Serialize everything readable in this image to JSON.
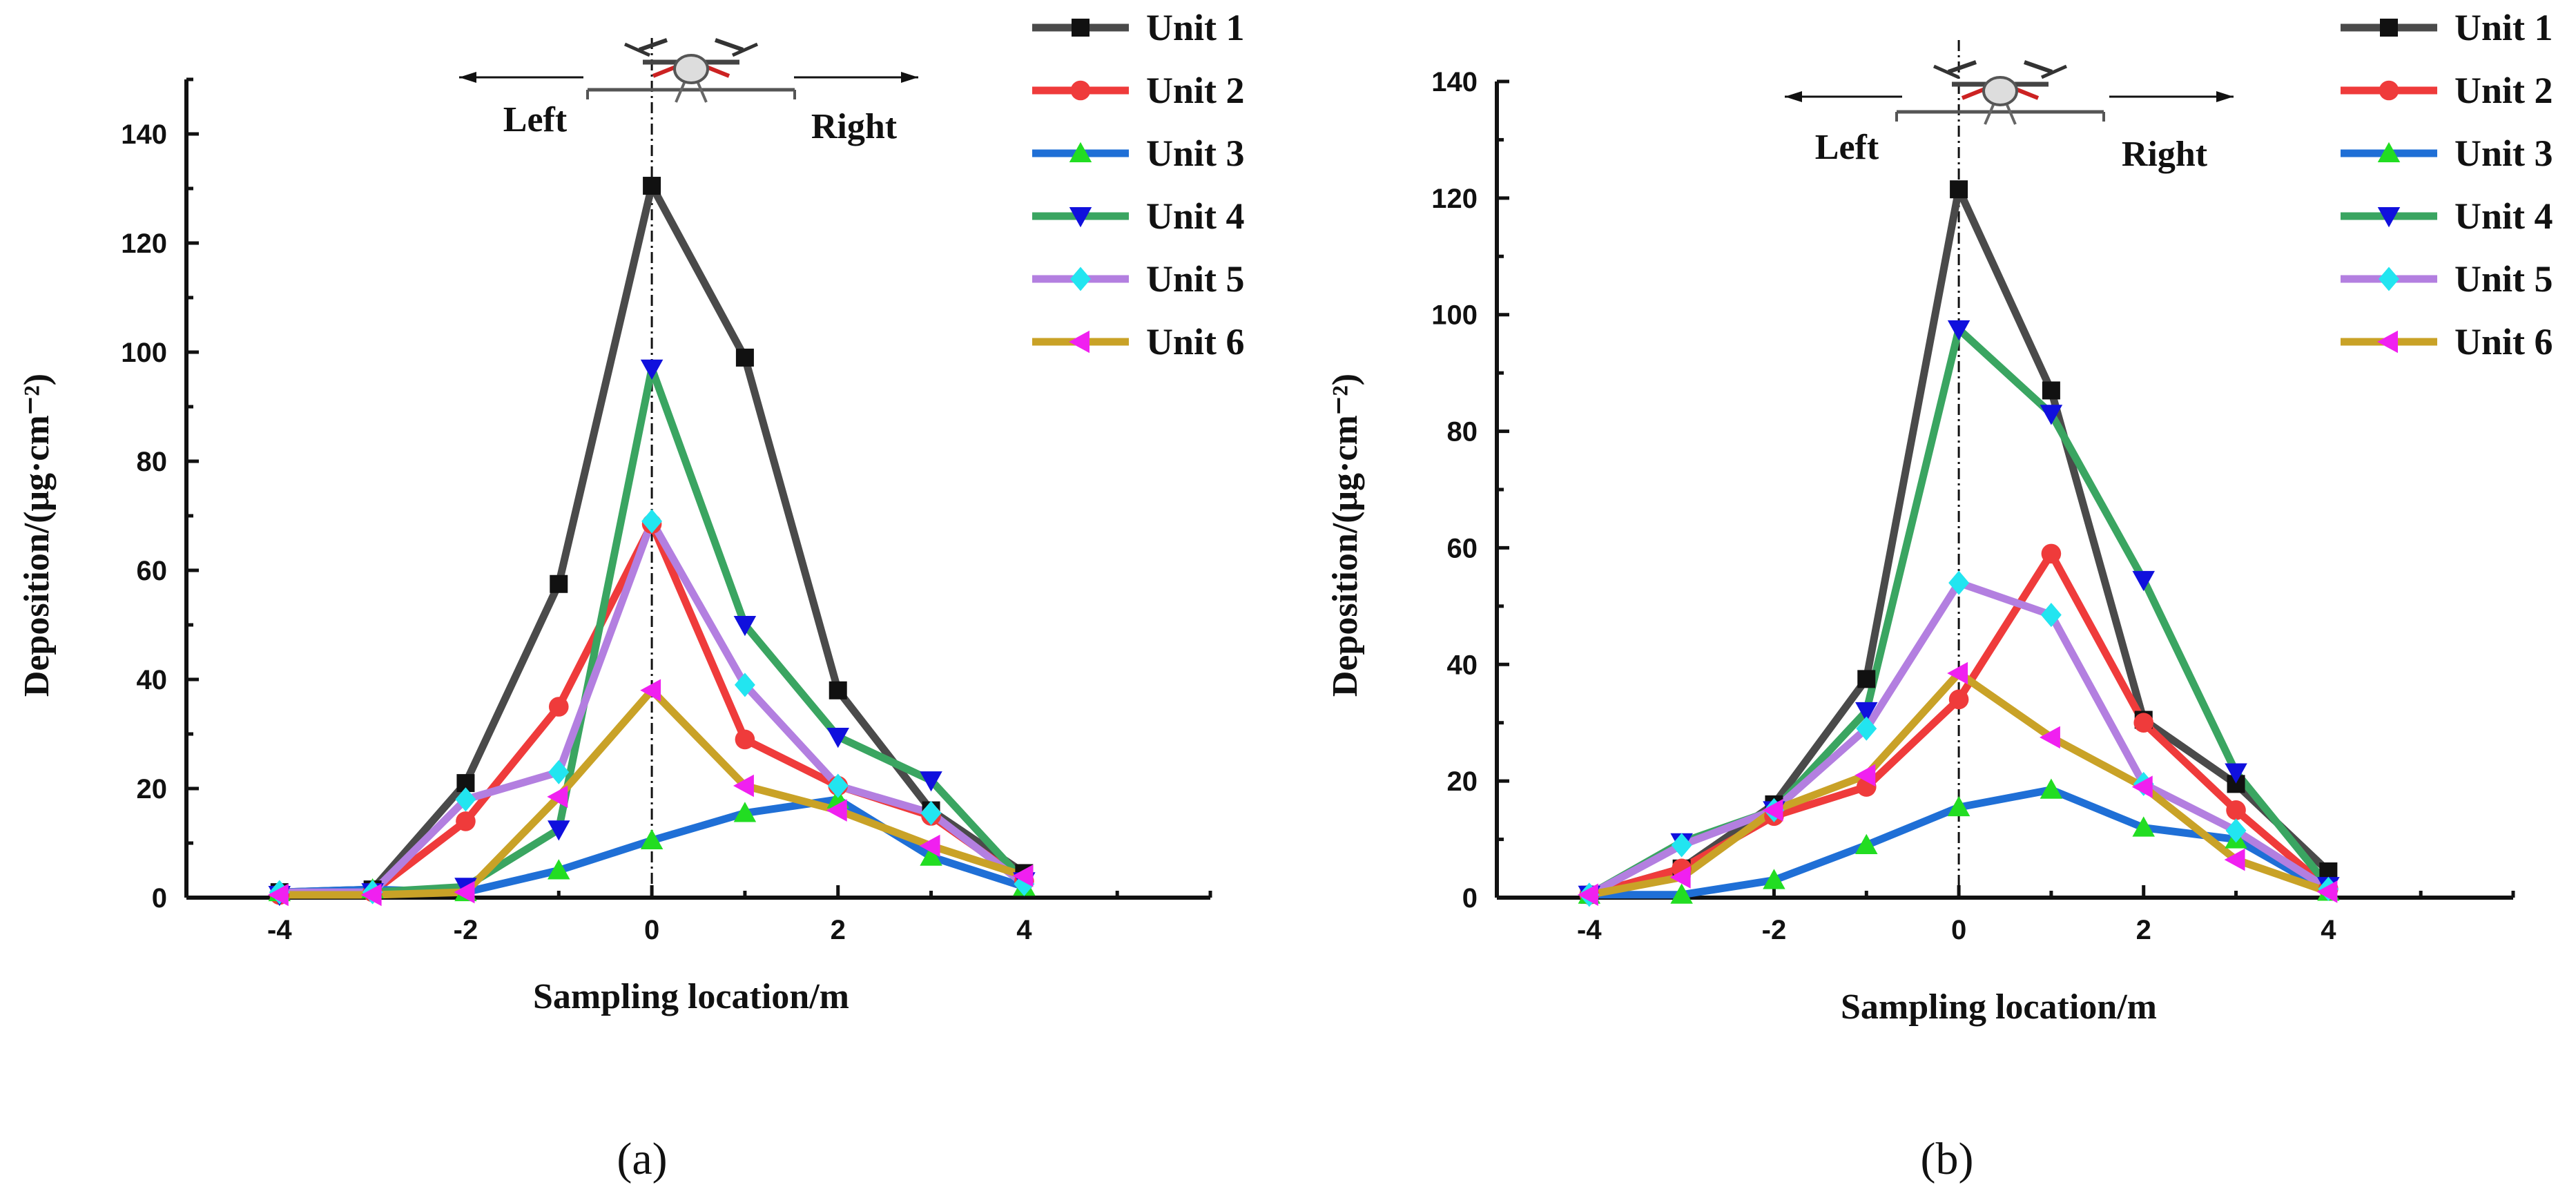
{
  "chart_data": [
    {
      "type": "line",
      "panel_label": "(a)",
      "xlabel": "Sampling location/m",
      "ylabel": "Deposition/(μg·cm⁻²)",
      "xlim": [
        -5,
        6
      ],
      "ylim": [
        0,
        150
      ],
      "xticks": [
        -4,
        -2,
        0,
        2,
        4
      ],
      "yticks": [
        0,
        20,
        40,
        60,
        80,
        100,
        120,
        140
      ],
      "annotations": {
        "left": "Left",
        "right": "Right"
      },
      "x": [
        -4,
        -3,
        -2,
        -1,
        0,
        1,
        2,
        3,
        4
      ],
      "series": [
        {
          "name": "Unit 1",
          "color": "#4a4a4a",
          "marker": "square",
          "values": [
            1,
            1.5,
            21,
            57.5,
            130.5,
            99,
            38,
            16,
            4.5
          ]
        },
        {
          "name": "Unit 2",
          "color": "#ef3b3b",
          "marker": "circle",
          "values": [
            0.5,
            1,
            14,
            35,
            68.5,
            29,
            20.5,
            15,
            3
          ]
        },
        {
          "name": "Unit 3",
          "color": "#1f6fd6",
          "marker": "triangle-up",
          "values": [
            1,
            1.5,
            1,
            5,
            10.5,
            15.5,
            18,
            7.5,
            2
          ]
        },
        {
          "name": "Unit 4",
          "color": "#3aa561",
          "marker": "triangle-down",
          "values": [
            0.5,
            1,
            2,
            12.5,
            97,
            50,
            29.5,
            21.5,
            3
          ]
        },
        {
          "name": "Unit 5",
          "color": "#b37fe0",
          "marker": "diamond",
          "values": [
            1,
            1,
            18,
            23,
            69,
            39,
            20.5,
            15.5,
            2.5
          ]
        },
        {
          "name": "Unit 6",
          "color": "#c9a227",
          "marker": "triangle-left",
          "values": [
            0.5,
            0.5,
            1,
            18.5,
            38,
            20.5,
            16,
            9.5,
            4
          ]
        }
      ]
    },
    {
      "type": "line",
      "panel_label": "(b)",
      "xlabel": "Sampling location/m",
      "ylabel": "Deposition/(μg·cm⁻²)",
      "xlim": [
        -5,
        6
      ],
      "ylim": [
        0,
        140
      ],
      "xticks": [
        -4,
        -2,
        0,
        2,
        4
      ],
      "yticks": [
        0,
        20,
        40,
        60,
        80,
        100,
        120,
        140
      ],
      "annotations": {
        "left": "Left",
        "right": "Right"
      },
      "x": [
        -4,
        -3,
        -2,
        -1,
        0,
        1,
        2,
        3,
        4
      ],
      "series": [
        {
          "name": "Unit 1",
          "color": "#4a4a4a",
          "marker": "square",
          "values": [
            0.5,
            5,
            16,
            37.5,
            121.5,
            87,
            30.5,
            19.5,
            4.5
          ]
        },
        {
          "name": "Unit 2",
          "color": "#ef3b3b",
          "marker": "circle",
          "values": [
            0.5,
            5,
            14,
            19,
            34,
            59,
            30,
            15,
            1.5
          ]
        },
        {
          "name": "Unit 3",
          "color": "#1f6fd6",
          "marker": "triangle-up",
          "values": [
            0.5,
            0.5,
            3,
            9,
            15.5,
            18.5,
            12,
            10,
            1
          ]
        },
        {
          "name": "Unit 4",
          "color": "#3aa561",
          "marker": "triangle-down",
          "values": [
            0.5,
            9.5,
            15,
            32,
            97.5,
            83,
            54.5,
            21.5,
            2
          ]
        },
        {
          "name": "Unit 5",
          "color": "#b37fe0",
          "marker": "diamond",
          "values": [
            0.5,
            9,
            15,
            29,
            54,
            48.5,
            19.5,
            11.5,
            1.5
          ]
        },
        {
          "name": "Unit 6",
          "color": "#c9a227",
          "marker": "triangle-left",
          "values": [
            0.5,
            3.5,
            15,
            21,
            38.5,
            27.5,
            19,
            6.5,
            1
          ]
        }
      ]
    }
  ]
}
